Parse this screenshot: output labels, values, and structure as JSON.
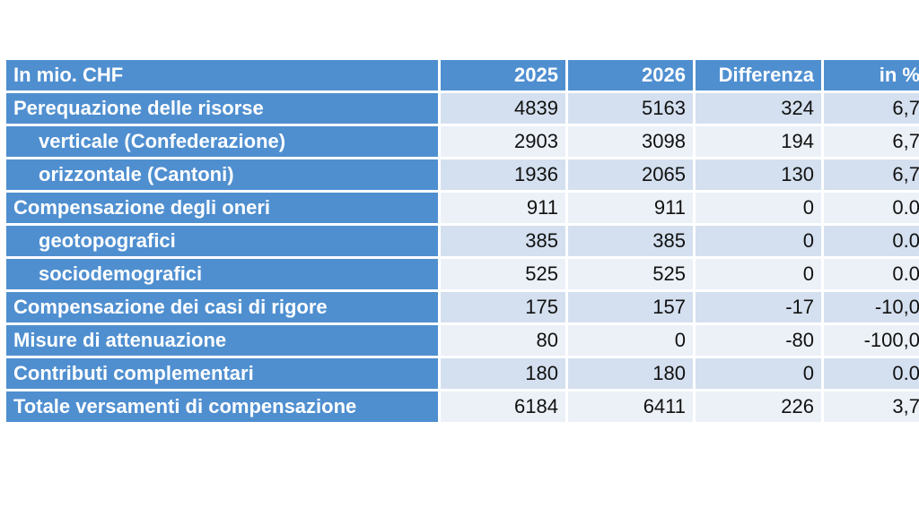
{
  "table": {
    "headers": [
      "In mio. CHF",
      "2025",
      "2026",
      "Differenza",
      "in %"
    ],
    "rows": [
      {
        "label": "Perequazione delle risorse",
        "sub": false,
        "v2025": "4839",
        "v2026": "5163",
        "diff": "324",
        "pct": "6,7"
      },
      {
        "label": "verticale (Confederazione)",
        "sub": true,
        "v2025": "2903",
        "v2026": "3098",
        "diff": "194",
        "pct": "6,7"
      },
      {
        "label": "orizzontale (Cantoni)",
        "sub": true,
        "v2025": "1936",
        "v2026": "2065",
        "diff": "130",
        "pct": "6,7"
      },
      {
        "label": "Compensazione degli oneri",
        "sub": false,
        "v2025": "911",
        "v2026": "911",
        "diff": "0",
        "pct": "0.0"
      },
      {
        "label": "geotopografici",
        "sub": true,
        "v2025": "385",
        "v2026": "385",
        "diff": "0",
        "pct": "0.0"
      },
      {
        "label": "sociodemografici",
        "sub": true,
        "v2025": "525",
        "v2026": "525",
        "diff": "0",
        "pct": "0.0"
      },
      {
        "label": "Compensazione dei casi di rigore",
        "sub": false,
        "v2025": "175",
        "v2026": "157",
        "diff": "-17",
        "pct": "-10,0"
      },
      {
        "label": "Misure di attenuazione",
        "sub": false,
        "v2025": "80",
        "v2026": "0",
        "diff": "-80",
        "pct": "-100,0"
      },
      {
        "label": "Contributi complementari",
        "sub": false,
        "v2025": "180",
        "v2026": "180",
        "diff": "0",
        "pct": "0.0"
      },
      {
        "label": "Totale versamenti di compensazione",
        "sub": false,
        "v2025": "6184",
        "v2026": "6411",
        "diff": "226",
        "pct": "3,7"
      }
    ]
  },
  "colors": {
    "header_blue": "#4f8fd0",
    "row_dark": "#d4e0ef",
    "row_light": "#ecf1f8"
  }
}
